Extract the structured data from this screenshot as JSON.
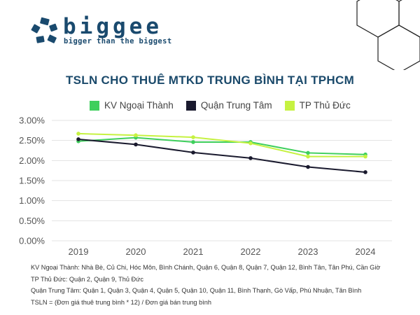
{
  "brand": {
    "name": "biggee",
    "tagline": "bigger than the biggest",
    "primary_color": "#1a4a6e"
  },
  "chart_data": {
    "type": "line",
    "title": "TSLN CHO THUÊ MTKD TRUNG BÌNH TẠI TPHCM",
    "x": [
      "2019",
      "2020",
      "2021",
      "2022",
      "2023",
      "2024"
    ],
    "yticks": [
      "0.00%",
      "0.50%",
      "1.00%",
      "1.50%",
      "2.00%",
      "2.50%",
      "3.00%"
    ],
    "ylim": [
      0,
      3.0
    ],
    "grid": true,
    "legend_position": "top",
    "series": [
      {
        "name": "KV Ngoại Thành",
        "color": "#3ecf5c",
        "values": [
          2.48,
          2.57,
          2.46,
          2.46,
          2.19,
          2.15
        ]
      },
      {
        "name": "Quận Trung Tâm",
        "color": "#1a1a2e",
        "values": [
          2.53,
          2.4,
          2.2,
          2.06,
          1.84,
          1.71
        ]
      },
      {
        "name": "TP Thủ Đức",
        "color": "#c6f241",
        "values": [
          2.67,
          2.63,
          2.58,
          2.43,
          2.1,
          2.1
        ]
      }
    ]
  },
  "notes": [
    "KV Ngoại Thành: Nhà Bè, Củ Chi, Hóc Môn, Bình Chánh, Quận 6, Quận 8, Quận 7, Quận 12, Bình Tân, Tân Phú, Cần Giờ",
    "TP Thủ Đức: Quận 2, Quận 9, Thủ Đức",
    "Quận Trung Tâm: Quận 1, Quận 3, Quận 4, Quận 5, Quận 10, Quận 11, Bình Thạnh, Gò Vấp, Phú Nhuận, Tân Bình",
    "TSLN = (Đơn giá thuê trung bình * 12) / Đơn giá bán trung bình"
  ]
}
